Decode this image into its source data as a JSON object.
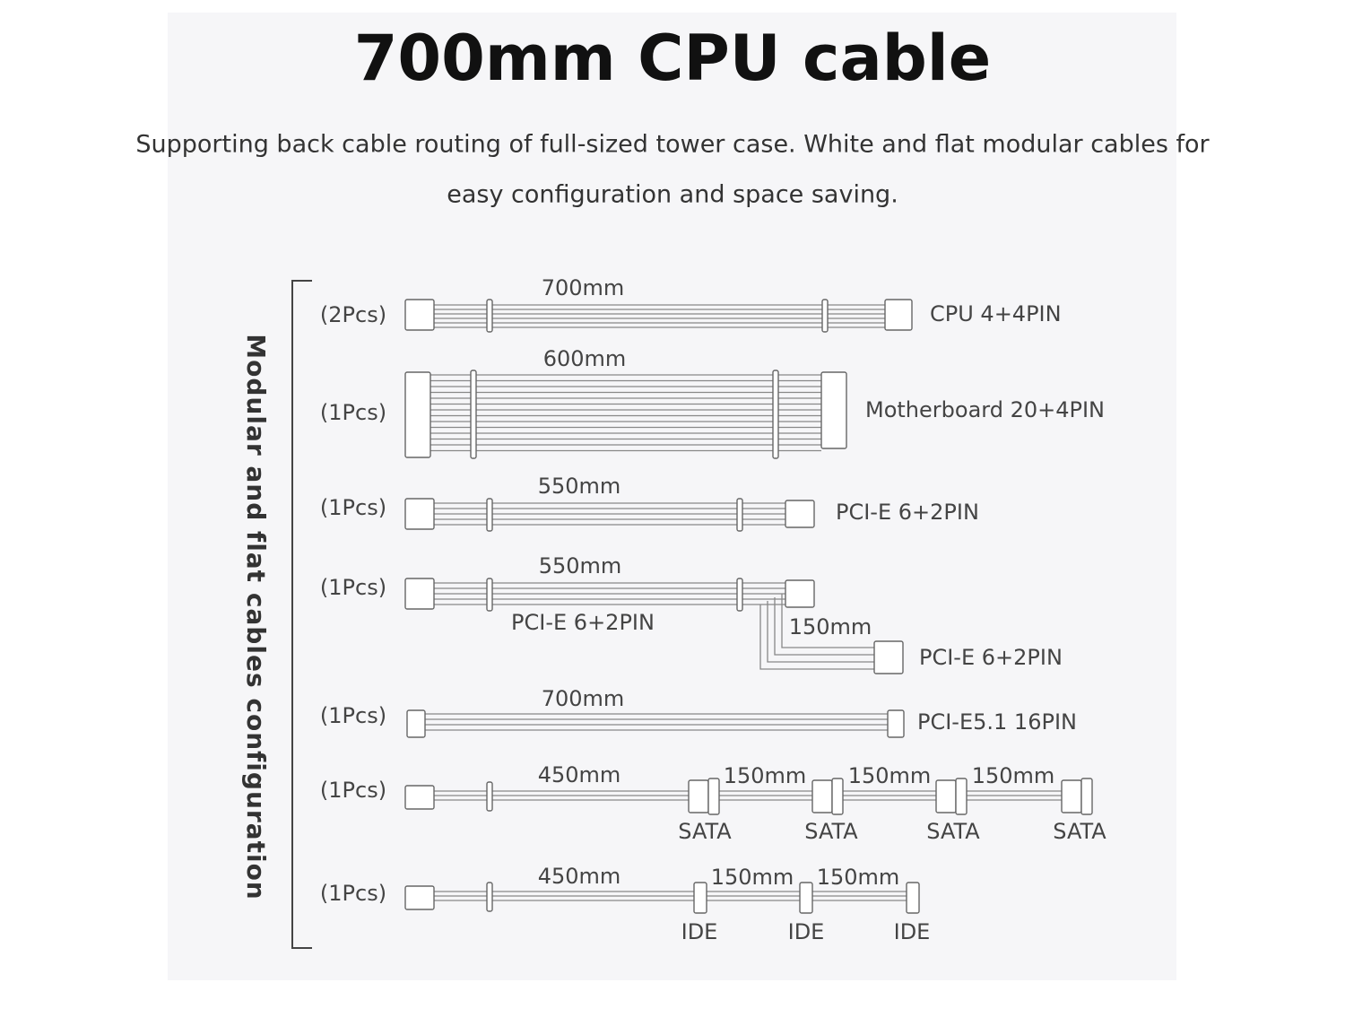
{
  "title": "700mm CPU cable",
  "subtitle": [
    "Supporting back cable routing of full-sized tower case. White and flat modular cables for",
    "easy configuration and space saving."
  ],
  "side_label": "Modular and flat cables configuration",
  "cables": [
    {
      "qty": "(2Pcs)",
      "length": "700mm",
      "name": "CPU 4+4PIN"
    },
    {
      "qty": "(1Pcs)",
      "length": "600mm",
      "name": "Motherboard 20+4PIN"
    },
    {
      "qty": "(1Pcs)",
      "length": "550mm",
      "name": "PCI-E 6+2PIN"
    },
    {
      "qty": "(1Pcs)",
      "length": "550mm",
      "name": "PCI-E 6+2PIN",
      "branch_length": "150mm",
      "branch_name": "PCI-E 6+2PIN"
    },
    {
      "qty": "(1Pcs)",
      "length": "700mm",
      "name": "PCI-E5.1 16PIN"
    },
    {
      "qty": "(1Pcs)",
      "length": "450mm",
      "segments": [
        "150mm",
        "150mm",
        "150mm"
      ],
      "connectors": [
        "SATA",
        "SATA",
        "SATA",
        "SATA"
      ]
    },
    {
      "qty": "(1Pcs)",
      "length": "450mm",
      "segments": [
        "150mm",
        "150mm"
      ],
      "connectors": [
        "IDE",
        "IDE",
        "IDE"
      ]
    }
  ]
}
